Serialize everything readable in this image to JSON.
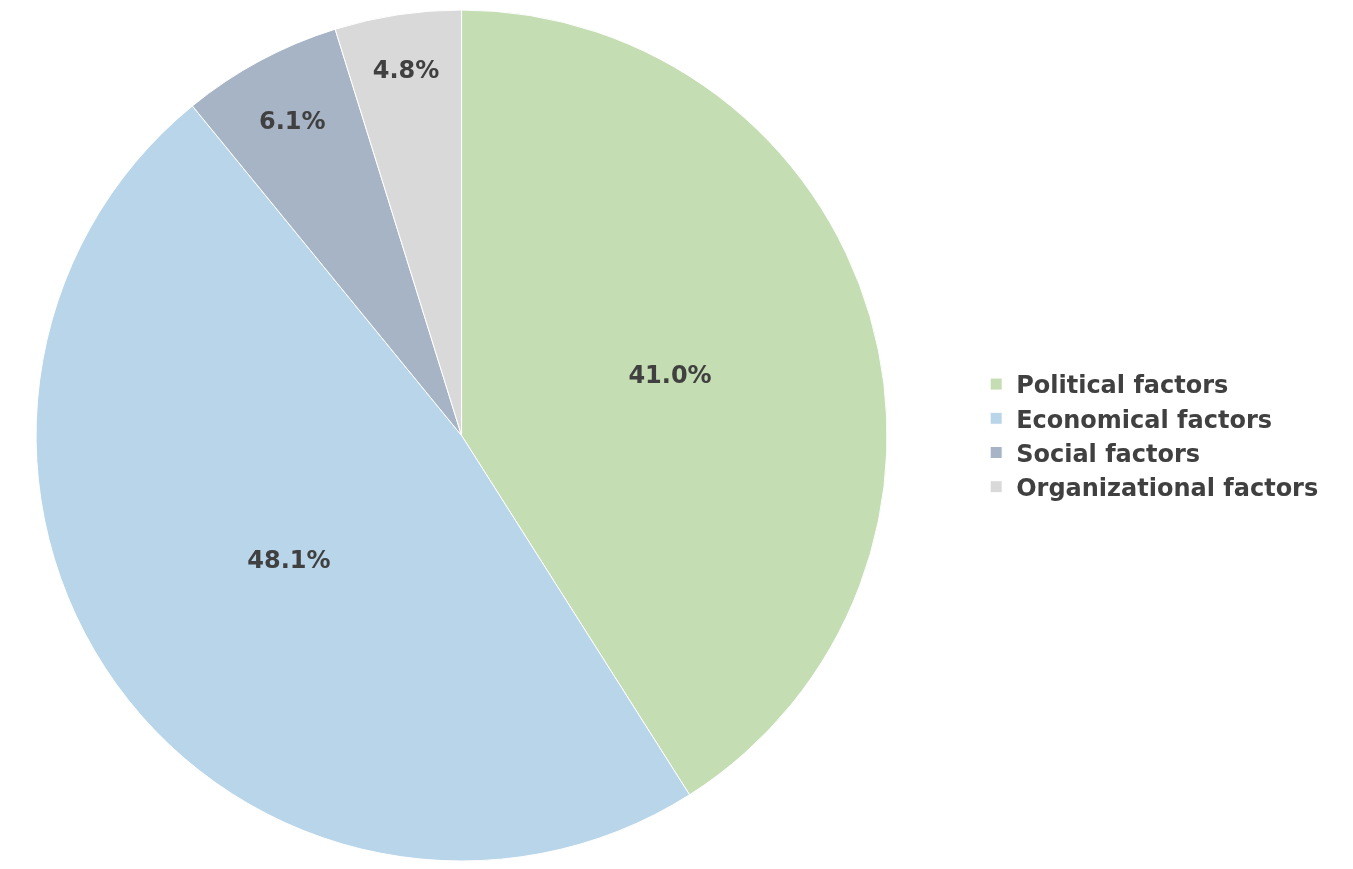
{
  "chart_data": {
    "type": "pie",
    "categories": [
      "Political factors",
      "Economical factors",
      "Social factors",
      "Organizational factors"
    ],
    "values": [
      41.0,
      48.1,
      6.1,
      4.8
    ],
    "value_labels": [
      "41.0%",
      "48.1%",
      "6.1%",
      "4.8%"
    ],
    "colors": [
      "#c4ddb3",
      "#b9d5ea",
      "#a7b4c6",
      "#d9d9d9"
    ],
    "legend": "right"
  }
}
